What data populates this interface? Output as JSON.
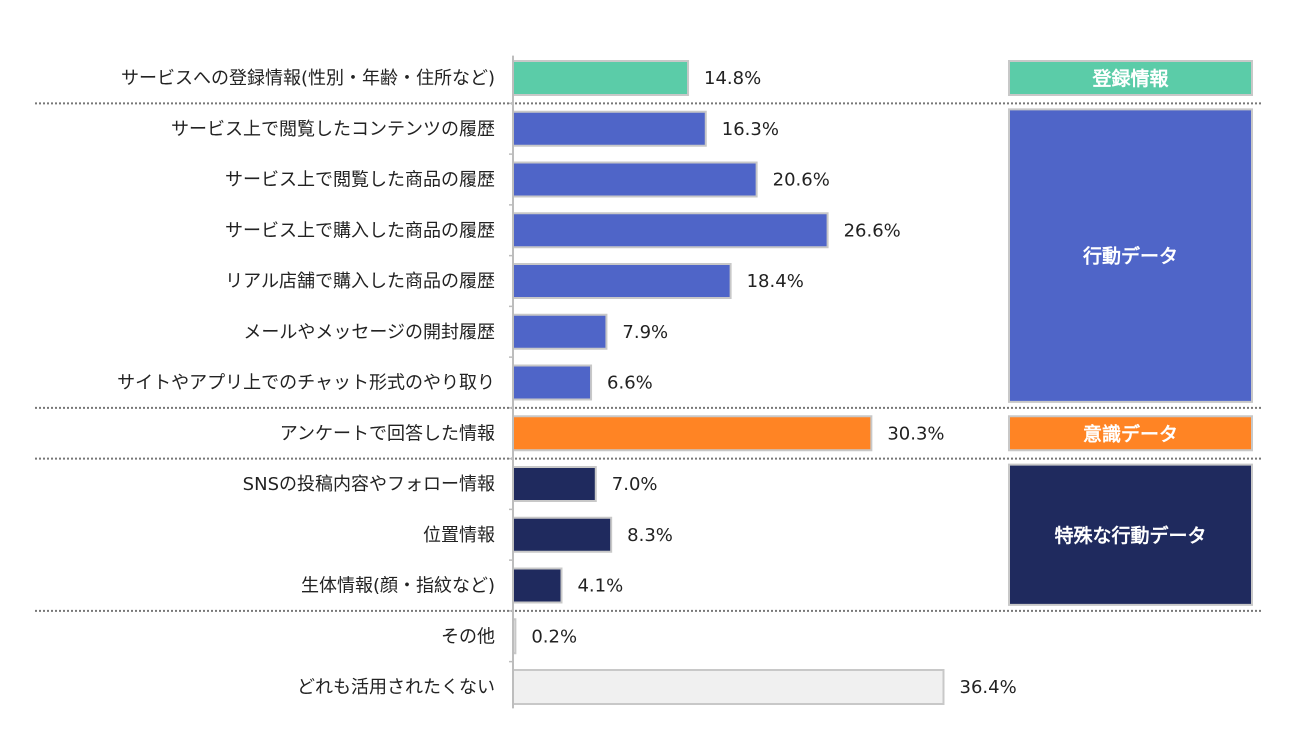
{
  "chart_data": {
    "type": "bar",
    "orientation": "horizontal",
    "unit": "%",
    "xlim": [
      0,
      40
    ],
    "categories": [
      "サービスへの登録情報(性別・年齢・住所など)",
      "サービス上で閲覧したコンテンツの履歴",
      "サービス上で閲覧した商品の履歴",
      "サービス上で購入した商品の履歴",
      "リアル店舗で購入した商品の履歴",
      "メールやメッセージの開封履歴",
      "サイトやアプリ上でのチャット形式のやり取り",
      "アンケートで回答した情報",
      "SNSの投稿内容やフォロー情報",
      "位置情報",
      "生体情報(顔・指紋など)",
      "その他",
      "どれも活用されたくない"
    ],
    "values": [
      14.8,
      16.3,
      20.6,
      26.6,
      18.4,
      7.9,
      6.6,
      30.3,
      7.0,
      8.3,
      4.1,
      0.2,
      36.4
    ],
    "value_labels": [
      "14.8%",
      "16.3%",
      "20.6%",
      "26.6%",
      "18.4%",
      "7.9%",
      "6.6%",
      "30.3%",
      "7.0%",
      "8.3%",
      "4.1%",
      "0.2%",
      "36.4%"
    ],
    "bar_colors": [
      "#5bcca8",
      "#4f65c8",
      "#4f65c8",
      "#4f65c8",
      "#4f65c8",
      "#4f65c8",
      "#4f65c8",
      "#ff8424",
      "#1f2a5e",
      "#1f2a5e",
      "#1f2a5e",
      "#f0f0f0",
      "#f0f0f0"
    ],
    "groups": [
      {
        "label": "登録情報",
        "start": 0,
        "end": 0,
        "color": "#5bcca8"
      },
      {
        "label": "行動データ",
        "start": 1,
        "end": 6,
        "color": "#4f65c8"
      },
      {
        "label": "意識データ",
        "start": 7,
        "end": 7,
        "color": "#ff8424"
      },
      {
        "label": "特殊な行動データ",
        "start": 8,
        "end": 10,
        "color": "#1f2a5e"
      }
    ],
    "separators_after": [
      0,
      6,
      7,
      10
    ],
    "title": "",
    "xlabel": "",
    "ylabel": "",
    "grid": false,
    "legend": "none"
  }
}
